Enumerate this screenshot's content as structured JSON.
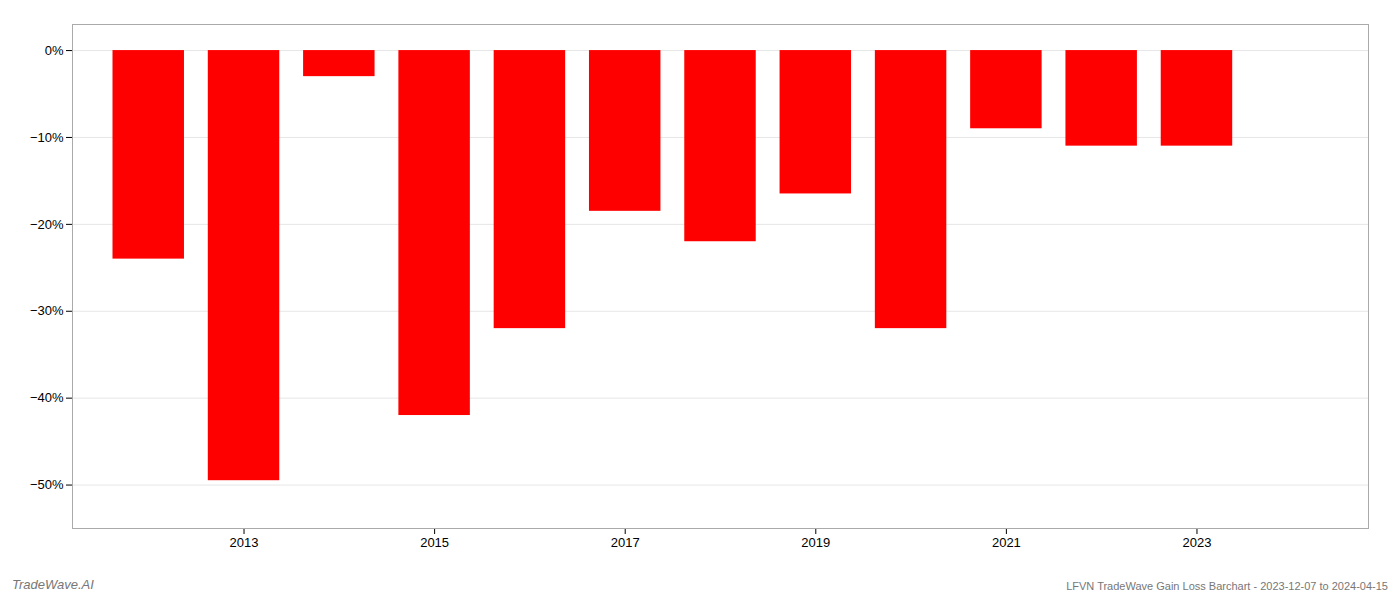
{
  "chart_data": {
    "type": "bar",
    "title": "LFVN TradeWave Gain Loss Barchart - 2023-12-07 to 2024-04-15",
    "annotations": [
      "TradeWave.AI"
    ],
    "x": [
      2012,
      2013,
      2014,
      2015,
      2016,
      2017,
      2018,
      2019,
      2020,
      2021,
      2022,
      2023
    ],
    "values": [
      -24.0,
      -49.5,
      -3.0,
      -42.0,
      -32.0,
      -18.5,
      -22.0,
      -16.5,
      -32.0,
      -9.0,
      -11.0,
      -11.0
    ],
    "color": "#ff0000",
    "xlim": [
      2011.2,
      2024.8
    ],
    "xticks": [
      2013,
      2015,
      2017,
      2019,
      2021,
      2023
    ],
    "ylim": [
      -55,
      3
    ],
    "yticks": [
      {
        "value": 0,
        "label": "0%"
      },
      {
        "value": -10,
        "label": "−10%"
      },
      {
        "value": -20,
        "label": "−20%"
      },
      {
        "value": -30,
        "label": "−30%"
      },
      {
        "value": -40,
        "label": "−40%"
      },
      {
        "value": -50,
        "label": "−50%"
      }
    ],
    "grid": true
  }
}
